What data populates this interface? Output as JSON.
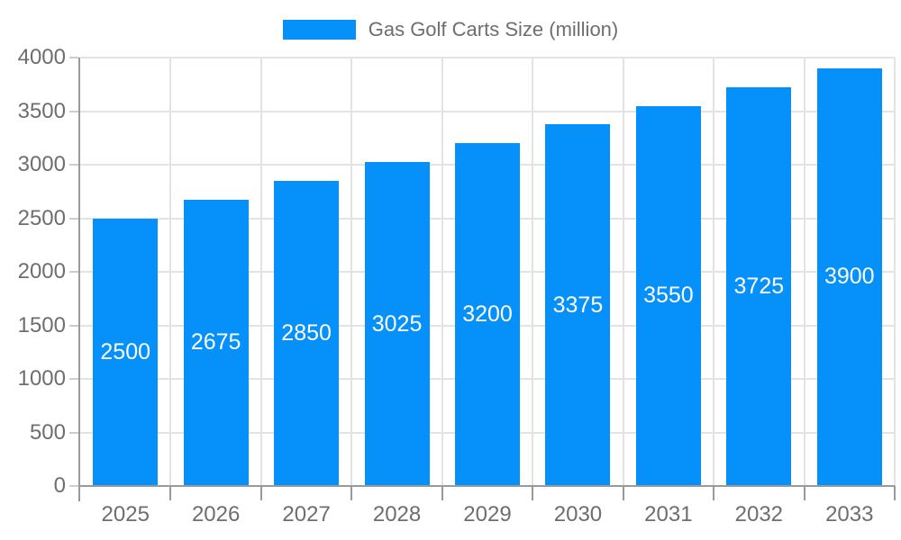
{
  "legend": {
    "label": "Gas Golf Carts Size (million)"
  },
  "colors": {
    "bar": "#0590fa",
    "grid": "#e3e3e3",
    "axis": "#999999",
    "tick": "#cccccc",
    "text": "#6e6e6e",
    "barlabel": "#ffffff",
    "background": "#ffffff"
  },
  "chart_data": {
    "type": "bar",
    "title": "Gas Golf Carts Size (million)",
    "series_name": "Gas Golf Carts Size (million)",
    "categories": [
      "2025",
      "2026",
      "2027",
      "2028",
      "2029",
      "2030",
      "2031",
      "2032",
      "2033"
    ],
    "values": [
      2500,
      2675,
      2850,
      3025,
      3200,
      3375,
      3550,
      3725,
      3900
    ],
    "xlabel": "",
    "ylabel": "",
    "ylim": [
      0,
      4000
    ],
    "ytick_step": 500,
    "yticks": [
      0,
      500,
      1000,
      1500,
      2000,
      2500,
      3000,
      3500,
      4000
    ],
    "grid": true,
    "legend_position": "top",
    "bar_label_position": "inside-center",
    "bar_label_color": "#ffffff"
  }
}
